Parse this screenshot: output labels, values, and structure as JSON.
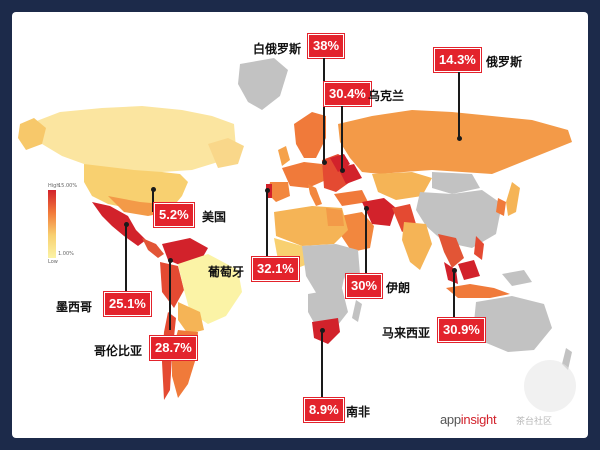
{
  "legend": {
    "high_label": "High",
    "high_value": "15.00%",
    "low_label": "Low",
    "low_value": "1.00%"
  },
  "brand": {
    "prefix": "app",
    "accent": "insight"
  },
  "watermark": {
    "text": "茶台社区"
  },
  "colors": {
    "badge": "#e3232c",
    "ocean": "#ffffff",
    "no_data": "#c2c2c2",
    "high": "#d2222b",
    "low": "#fbf3a6"
  },
  "callouts": [
    {
      "id": "belarus",
      "name": "白俄罗斯",
      "value": "38%"
    },
    {
      "id": "ukraine",
      "name": "乌克兰",
      "value": "30.4%"
    },
    {
      "id": "russia",
      "name": "俄罗斯",
      "value": "14.3%"
    },
    {
      "id": "usa",
      "name": "美国",
      "value": "5.2%"
    },
    {
      "id": "portugal",
      "name": "葡萄牙",
      "value": "32.1%"
    },
    {
      "id": "iran",
      "name": "伊朗",
      "value": "30%"
    },
    {
      "id": "mexico",
      "name": "墨西哥",
      "value": "25.1%"
    },
    {
      "id": "colombia",
      "name": "哥伦比亚",
      "value": "28.7%"
    },
    {
      "id": "malaysia",
      "name": "马来西亚",
      "value": "30.9%"
    },
    {
      "id": "south_africa",
      "name": "南非",
      "value": "8.9%"
    }
  ]
}
